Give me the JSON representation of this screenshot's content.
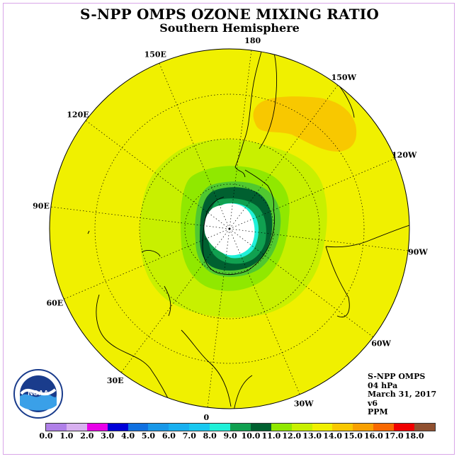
{
  "title": "S-NPP OMPS OZONE MIXING RATIO",
  "subtitle": "Southern Hemisphere",
  "longitude_labels": [
    {
      "text": "90W",
      "lon": -90
    },
    {
      "text": "60W",
      "lon": -60
    },
    {
      "text": "30W",
      "lon": -30
    },
    {
      "text": "0",
      "lon": 0
    },
    {
      "text": "30E",
      "lon": 30
    },
    {
      "text": "60E",
      "lon": 60
    },
    {
      "text": "90E",
      "lon": 90
    },
    {
      "text": "120E",
      "lon": 120
    },
    {
      "text": "150E",
      "lon": 150
    },
    {
      "text": "180",
      "lon": 180
    },
    {
      "text": "150W",
      "lon": -150
    },
    {
      "text": "120W",
      "lon": -120
    }
  ],
  "info": {
    "instrument": "S-NPP OMPS",
    "level": "04 hPa",
    "date": "March 31, 2017",
    "version": "v6",
    "units": "PPM"
  },
  "colorbar": {
    "ticks": [
      "0.0",
      "1.0",
      "2.0",
      "3.0",
      "4.0",
      "5.0",
      "6.0",
      "7.0",
      "8.0",
      "9.0",
      "10.0",
      "11.0",
      "12.0",
      "13.0",
      "14.0",
      "15.0",
      "16.0",
      "17.0",
      "18.0"
    ],
    "colors": [
      "#b080e8",
      "#d8b0f0",
      "#e800e8",
      "#0000d8",
      "#1070e0",
      "#1898e8",
      "#18b0f0",
      "#18c8f0",
      "#20f0d8",
      "#10a050",
      "#006030",
      "#90e800",
      "#c8f000",
      "#f0f000",
      "#f8c800",
      "#f8a000",
      "#f86800",
      "#f00000",
      "#905030"
    ]
  },
  "legend_colors": {
    "background_ppm_13_14": "#f0f000",
    "ppm_12_13": "#c8f000",
    "ppm_11_12": "#90e800",
    "ppm_10_11": "#50c830",
    "ppm_9_10": "#006030",
    "ppm_8_9": "#10a050",
    "ppm_7_8": "#20f0d8",
    "ppm_14_15": "#f8c800"
  },
  "logo": {
    "text": "NOAA",
    "icon": "noaa-logo-icon"
  }
}
